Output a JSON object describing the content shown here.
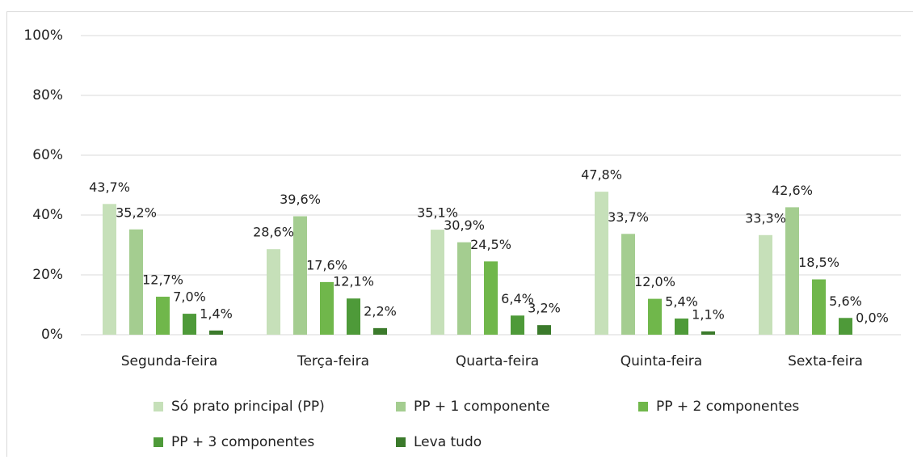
{
  "chart_data": {
    "type": "bar",
    "categories": [
      "Segunda-feira",
      "Terça-feira",
      "Quarta-feira",
      "Quinta-feira",
      "Sexta-feira"
    ],
    "series": [
      {
        "name": "Só prato principal (PP)",
        "color": "#c6e0b9",
        "values": [
          43.7,
          28.6,
          35.1,
          47.8,
          33.3
        ],
        "value_labels": [
          "43,7%",
          "28,6%",
          "35,1%",
          "47,8%",
          "33,3%"
        ]
      },
      {
        "name": "PP + 1 componente",
        "color": "#a4cd90",
        "values": [
          35.2,
          39.6,
          30.9,
          33.7,
          42.6
        ],
        "value_labels": [
          "35,2%",
          "39,6%",
          "30,9%",
          "33,7%",
          "42,6%"
        ]
      },
      {
        "name": "PP + 2 componentes",
        "color": "#70b74b",
        "values": [
          12.7,
          17.6,
          24.5,
          12.0,
          18.5
        ],
        "value_labels": [
          "12,7%",
          "17,6%",
          "24,5%",
          "12,0%",
          "18,5%"
        ]
      },
      {
        "name": "PP + 3 componentes",
        "color": "#4e9a39",
        "values": [
          7.0,
          12.1,
          6.4,
          5.4,
          5.6
        ],
        "value_labels": [
          "7,0%",
          "12,1%",
          "6,4%",
          "5,4%",
          "5,6%"
        ]
      },
      {
        "name": "Leva tudo",
        "color": "#3b7a2b",
        "values": [
          1.4,
          2.2,
          3.2,
          1.1,
          0.0
        ],
        "value_labels": [
          "1,4%",
          "2,2%",
          "3,2%",
          "1,1%",
          "0,0%"
        ]
      }
    ],
    "ylim": [
      0,
      100
    ],
    "yticks": [
      {
        "value": 0,
        "label": "0%"
      },
      {
        "value": 20,
        "label": "20%"
      },
      {
        "value": 40,
        "label": "40%"
      },
      {
        "value": 60,
        "label": "60%"
      },
      {
        "value": 80,
        "label": "80%"
      },
      {
        "value": 100,
        "label": "100%"
      }
    ],
    "grid": true,
    "legend": "bottom"
  }
}
